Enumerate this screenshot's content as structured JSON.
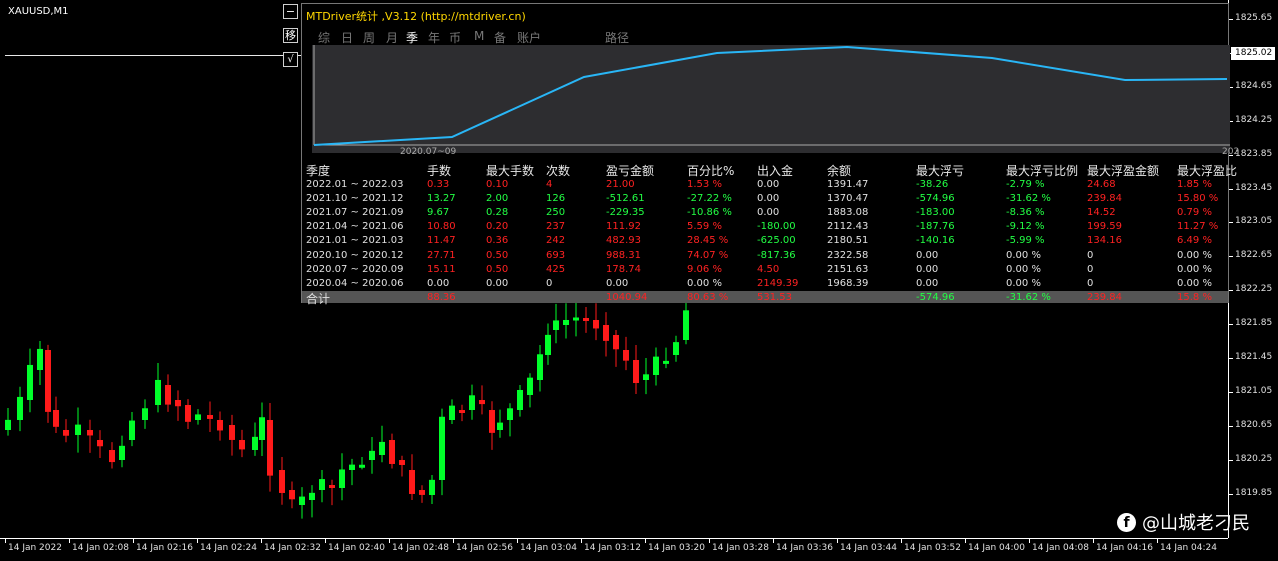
{
  "chart": {
    "symbol": "XAUUSD,M1",
    "bull_color": "#00ff2a",
    "bear_color": "#ff1a1a",
    "price_labels": [
      "1825.65",
      "1825.02",
      "1824.65",
      "1824.25",
      "1823.85",
      "1823.45",
      "1823.05",
      "1822.65",
      "1822.25",
      "1821.85",
      "1821.45",
      "1821.05",
      "1820.65",
      "1820.25",
      "1819.85"
    ],
    "current_price": "1825.02",
    "time_labels": [
      "14 Jan 2022",
      "14 Jan 02:08",
      "14 Jan 02:16",
      "14 Jan 02:24",
      "14 Jan 02:32",
      "14 Jan 02:40",
      "14 Jan 02:48",
      "14 Jan 02:56",
      "14 Jan 03:04",
      "14 Jan 03:12",
      "14 Jan 03:20",
      "14 Jan 03:28",
      "14 Jan 03:36",
      "14 Jan 03:44",
      "14 Jan 03:52",
      "14 Jan 04:00",
      "14 Jan 04:08",
      "14 Jan 04:16",
      "14 Jan 04:24"
    ]
  },
  "side_buttons": {
    "minimize": "−",
    "move": "移",
    "check": "√"
  },
  "panel": {
    "title": "MTDriver统计 ,V3.12 (http://mtdriver.cn)",
    "tabs": [
      "综",
      "日",
      "周",
      "月",
      "季",
      "年",
      "币",
      "M",
      "备",
      "账户",
      "路径"
    ],
    "active_tab": "季",
    "equity_line_color": "#29b6f6",
    "equity_start_date": "2020.07~09",
    "equity_end_date": "202"
  },
  "table": {
    "headers": [
      "季度",
      "手数",
      "最大手数",
      "次数",
      "盈亏金额",
      "百分比%",
      "出入金",
      "余额",
      "最大浮亏",
      "最大浮亏比例",
      "最大浮盈金额",
      "最大浮盈比"
    ],
    "rows": [
      {
        "cells": [
          "2022.01 ~ 2022.03",
          "0.33",
          "0.10",
          "4",
          "21.00",
          "1.53 %",
          "0.00",
          "1391.47",
          "-38.26",
          "-2.79 %",
          "24.68",
          "1.85 %"
        ],
        "colors": [
          "w",
          "r",
          "r",
          "r",
          "r",
          "r",
          "w",
          "w",
          "g",
          "g",
          "r",
          "r"
        ]
      },
      {
        "cells": [
          "2021.10 ~ 2021.12",
          "13.27",
          "2.00",
          "126",
          "-512.61",
          "-27.22 %",
          "0.00",
          "1370.47",
          "-574.96",
          "-31.62 %",
          "239.84",
          "15.80 %"
        ],
        "colors": [
          "w",
          "g",
          "g",
          "g",
          "g",
          "g",
          "w",
          "w",
          "g",
          "g",
          "r",
          "r"
        ]
      },
      {
        "cells": [
          "2021.07 ~ 2021.09",
          "9.67",
          "0.28",
          "250",
          "-229.35",
          "-10.86 %",
          "0.00",
          "1883.08",
          "-183.00",
          "-8.36 %",
          "14.52",
          "0.79 %"
        ],
        "colors": [
          "w",
          "g",
          "g",
          "g",
          "g",
          "g",
          "w",
          "w",
          "g",
          "g",
          "r",
          "r"
        ]
      },
      {
        "cells": [
          "2021.04 ~ 2021.06",
          "10.80",
          "0.20",
          "237",
          "111.92",
          "5.59 %",
          "-180.00",
          "2112.43",
          "-187.76",
          "-9.12 %",
          "199.59",
          "11.27 %"
        ],
        "colors": [
          "w",
          "r",
          "r",
          "r",
          "r",
          "r",
          "g",
          "w",
          "g",
          "g",
          "r",
          "r"
        ]
      },
      {
        "cells": [
          "2021.01 ~ 2021.03",
          "11.47",
          "0.36",
          "242",
          "482.93",
          "28.45 %",
          "-625.00",
          "2180.51",
          "-140.16",
          "-5.99 %",
          "134.16",
          "6.49 %"
        ],
        "colors": [
          "w",
          "r",
          "r",
          "r",
          "r",
          "r",
          "g",
          "w",
          "g",
          "g",
          "r",
          "r"
        ]
      },
      {
        "cells": [
          "2020.10 ~ 2020.12",
          "27.71",
          "0.50",
          "693",
          "988.31",
          "74.07 %",
          "-817.36",
          "2322.58",
          "0.00",
          "0.00 %",
          "0",
          "0.00 %"
        ],
        "colors": [
          "w",
          "r",
          "r",
          "r",
          "r",
          "r",
          "g",
          "w",
          "w",
          "w",
          "w",
          "w"
        ]
      },
      {
        "cells": [
          "2020.07 ~ 2020.09",
          "15.11",
          "0.50",
          "425",
          "178.74",
          "9.06 %",
          "4.50",
          "2151.63",
          "0.00",
          "0.00 %",
          "0",
          "0.00 %"
        ],
        "colors": [
          "w",
          "r",
          "r",
          "r",
          "r",
          "r",
          "r",
          "w",
          "w",
          "w",
          "w",
          "w"
        ]
      },
      {
        "cells": [
          "2020.04 ~ 2020.06",
          "0.00",
          "0.00",
          "0",
          "0.00",
          "0.00 %",
          "2149.39",
          "1968.39",
          "0.00",
          "0.00 %",
          "0",
          "0.00 %"
        ],
        "colors": [
          "w",
          "w",
          "w",
          "w",
          "w",
          "w",
          "r",
          "w",
          "w",
          "w",
          "w",
          "w"
        ]
      }
    ],
    "total": {
      "cells": [
        "合计",
        "88.36",
        "",
        "",
        "1040.94",
        "80.63 %",
        "531.53",
        "",
        "-574.96",
        "-31.62 %",
        "239.84",
        "15.8 %"
      ],
      "colors": [
        "w",
        "r",
        "w",
        "w",
        "r",
        "r",
        "r",
        "w",
        "g",
        "g",
        "r",
        "r"
      ]
    }
  },
  "watermark": {
    "icon": "facebook-icon",
    "glyph": "f",
    "text": "@山城老刁民"
  }
}
